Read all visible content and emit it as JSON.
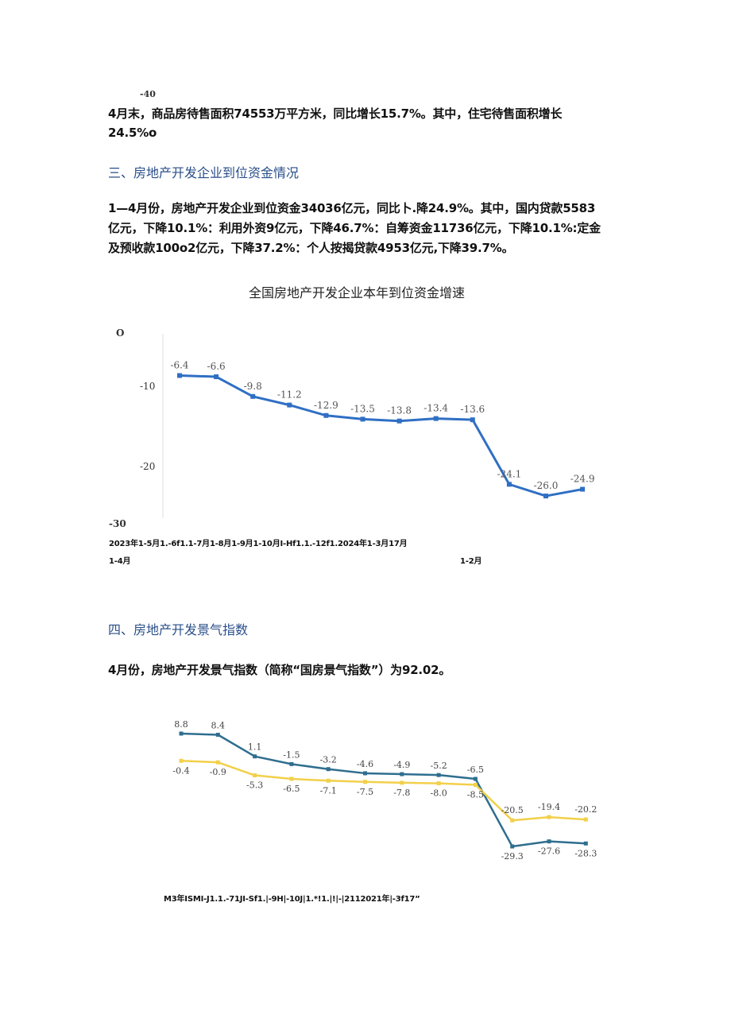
{
  "top_fragment": "-40",
  "paragraph1": {
    "line1": "4月末，商品房待售面积74553万平方米，同比增长15.7%。其中，住宅待售面积增长",
    "line2": "24.5%o"
  },
  "section3": {
    "heading": "三、房地产开发企业到位资金情况",
    "line1": "1—4月份，房地产开发企业到位资金34036亿元，同比卜.降24.9%。其中，国内贷款5583",
    "line2": "亿元，下降10.1%：利用外资9亿元，下降46.7%：自筹资金11736亿元，下降10.1%:定金",
    "line3": "及预收款100o2亿元，下降37.2%：个人按揭贷款4953亿元,下降39.7%。"
  },
  "chart1": {
    "title": "全国房地产开发企业本年到位资金增速",
    "y_ticks": [
      "O",
      "-10",
      "-20",
      "-30"
    ],
    "x_row1": "2023年1-5月1.-6f1.1-7月1-8月1-9月1-10月I-Hf1.1.-12f1.2024年1-3月17月",
    "x_row2_left": "1-4月",
    "x_row2_right": "1-2月",
    "line_color": "#2f6fc4"
  },
  "section4": {
    "heading": "四、房地产开发景气指数",
    "line1": "4月份，房地产开发景气指数（简称“国房景气指数”）为92.02。"
  },
  "chart2": {
    "x_row": "M3年ISMI-J1.1.-71JI-Sf1.|-9H|-10J|1.*!1.|!|-|2112021年|-3f17”",
    "series_a_color": "#2f6e8f",
    "series_b_color": "#f2d04a"
  },
  "chart_data": [
    {
      "type": "line",
      "title": "全国房地产开发企业本年到位资金增速",
      "xlabel": "",
      "ylabel": "",
      "ylim": [
        -30,
        0
      ],
      "grid": false,
      "x": [
        "2023年1-4月",
        "1-5月",
        "1-6月",
        "1-7月",
        "1-8月",
        "1-9月",
        "1-10月",
        "1-11月",
        "1-12月",
        "2024年1-2月",
        "1-3月",
        "1-4月"
      ],
      "values": [
        -6.4,
        -6.6,
        -9.8,
        -11.2,
        -12.9,
        -13.5,
        -13.8,
        -13.4,
        -13.6,
        -24.1,
        -26.0,
        -24.9
      ],
      "labels": [
        "-6.4",
        "-6.6",
        "-9.8",
        "-11.2",
        "-12.9",
        "-13.5",
        "-13.8",
        "-13.4",
        "-13.6",
        "-24.1",
        "-26.0",
        "-24.9"
      ]
    },
    {
      "type": "line",
      "title": "",
      "xlabel": "",
      "ylabel": "",
      "grid": false,
      "series": [
        {
          "values": [
            8.8,
            8.4,
            1.1,
            -1.5,
            -3.2,
            -4.6,
            -4.9,
            -5.2,
            -6.5,
            -29.3,
            -27.6,
            -28.3
          ],
          "labels": [
            "8.8",
            "8.4",
            "1.1",
            "-1.5",
            "-3.2",
            "-4.6",
            "-4.9",
            "-5.2",
            "-6.5",
            "-29.3",
            "-27.6",
            "-28.3"
          ]
        },
        {
          "values": [
            -0.4,
            -0.9,
            -5.3,
            -6.5,
            -7.1,
            -7.5,
            -7.8,
            -8.0,
            -8.5,
            -20.5,
            -19.4,
            -20.2
          ],
          "labels": [
            "-0.4",
            "-0.9",
            "-5.3",
            "-6.5",
            "-7.1",
            "-7.5",
            "-7.8",
            "-8.0",
            "-8.5",
            "-20.5",
            "-19.4",
            "-20.2"
          ]
        }
      ]
    }
  ]
}
